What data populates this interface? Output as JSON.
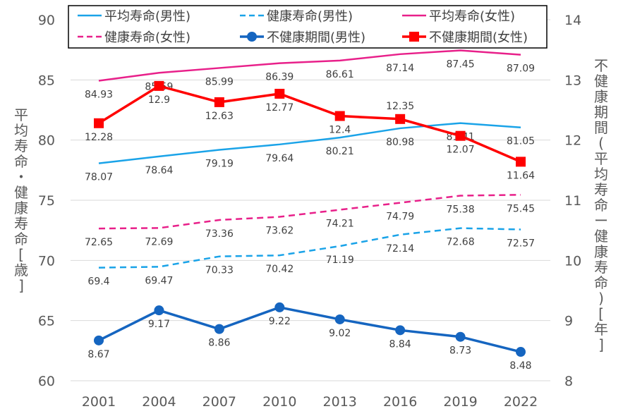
{
  "chart_data": {
    "type": "line",
    "categories": [
      "2001",
      "2004",
      "2007",
      "2010",
      "2013",
      "2016",
      "2019",
      "2022"
    ],
    "y_left": {
      "label": "平均寿命・健康寿命[歳]",
      "range": [
        60,
        90
      ],
      "ticks": [
        "60",
        "65",
        "70",
        "75",
        "80",
        "85",
        "90"
      ]
    },
    "y_right": {
      "label": "不健康期間(平均寿命ー健康寿命)[年]",
      "range": [
        8,
        14
      ],
      "ticks": [
        "8",
        "9",
        "10",
        "11",
        "12",
        "13",
        "14"
      ]
    },
    "grid": true,
    "legend_position": "top",
    "series": [
      {
        "name": "平均寿命(男性)",
        "axis": "left",
        "color": "#1aa3e8",
        "dash": false,
        "marker": "none",
        "values": [
          78.07,
          78.64,
          79.19,
          79.64,
          80.21,
          80.98,
          81.41,
          81.05
        ],
        "labels": [
          "78.07",
          "78.64",
          "79.19",
          "79.64",
          "80.21",
          "80.98",
          "81.41",
          "81.05"
        ]
      },
      {
        "name": "健康寿命(男性)",
        "axis": "left",
        "color": "#1aa3e8",
        "dash": true,
        "marker": "none",
        "values": [
          69.4,
          69.47,
          70.33,
          70.42,
          71.19,
          72.14,
          72.68,
          72.57
        ],
        "labels": [
          "69.4",
          "69.47",
          "70.33",
          "70.42",
          "71.19",
          "72.14",
          "72.68",
          "72.57"
        ]
      },
      {
        "name": "平均寿命(女性)",
        "axis": "left",
        "color": "#e8208a",
        "dash": false,
        "marker": "none",
        "values": [
          84.93,
          85.59,
          85.99,
          86.39,
          86.61,
          87.14,
          87.45,
          87.09
        ],
        "labels": [
          "84.93",
          "85.59",
          "85.99",
          "86.39",
          "86.61",
          "87.14",
          "87.45",
          "87.09"
        ]
      },
      {
        "name": "健康寿命(女性)",
        "axis": "left",
        "color": "#e8208a",
        "dash": true,
        "marker": "none",
        "values": [
          72.65,
          72.69,
          73.36,
          73.62,
          74.21,
          74.79,
          75.38,
          75.45
        ],
        "labels": [
          "72.65",
          "72.69",
          "73.36",
          "73.62",
          "74.21",
          "74.79",
          "75.38",
          "75.45"
        ]
      },
      {
        "name": "不健康期間(男性)",
        "axis": "right",
        "color": "#1565c0",
        "dash": false,
        "marker": "circle",
        "values": [
          8.67,
          9.17,
          8.86,
          9.22,
          9.02,
          8.84,
          8.73,
          8.48
        ],
        "labels": [
          "8.67",
          "9.17",
          "8.86",
          "9.22",
          "9.02",
          "8.84",
          "8.73",
          "8.48"
        ]
      },
      {
        "name": "不健康期間(女性)",
        "axis": "right",
        "color": "#ff0000",
        "dash": false,
        "marker": "square",
        "values": [
          12.28,
          12.9,
          12.63,
          12.77,
          12.4,
          12.35,
          12.07,
          11.64
        ],
        "labels": [
          "12.28",
          "12.9",
          "12.63",
          "12.77",
          "12.4",
          "12.35",
          "12.07",
          "11.64"
        ]
      }
    ]
  }
}
